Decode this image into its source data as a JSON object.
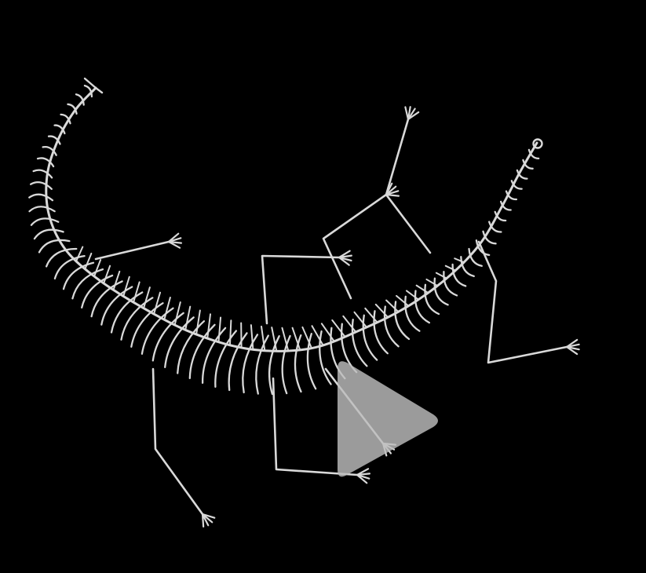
{
  "player": {
    "background_color": "#000000",
    "figure_stroke_color": "#d9d9d9",
    "play_icon": "play-triangle-icon",
    "play_icon_color": "#bdbdbd"
  }
}
